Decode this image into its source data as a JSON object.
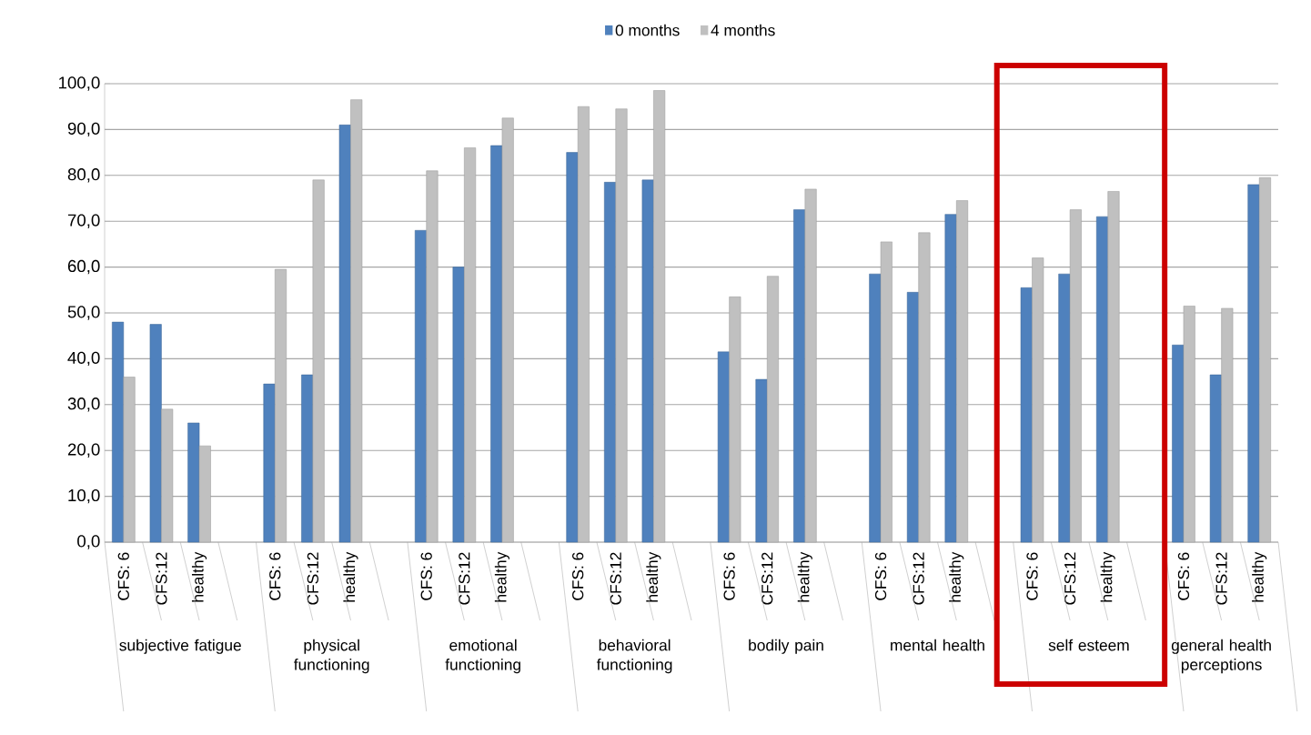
{
  "chart_data": {
    "type": "bar",
    "categories": [
      "CFS: 6",
      "CFS:12",
      "healthy",
      null,
      "CFS: 6",
      "CFS:12",
      "healthy",
      null,
      "CFS: 6",
      "CFS:12",
      "healthy",
      null,
      "CFS: 6",
      "CFS:12",
      "healthy",
      null,
      "CFS: 6",
      "CFS:12",
      "healthy",
      null,
      "CFS: 6",
      "CFS:12",
      "healthy",
      null,
      "CFS: 6",
      "CFS:12",
      "healthy",
      null,
      "CFS: 6",
      "CFS:12",
      "healthy"
    ],
    "series": [
      {
        "name": "0 months",
        "color": "#4f81bd",
        "values": [
          48,
          47.5,
          26,
          null,
          34.5,
          36.5,
          91,
          null,
          68,
          60,
          86.5,
          null,
          85,
          78.5,
          79,
          null,
          41.5,
          35.5,
          72.5,
          null,
          58.5,
          54.5,
          71.5,
          null,
          55.5,
          58.5,
          71,
          null,
          43,
          36.5,
          78
        ]
      },
      {
        "name": "4 months",
        "color": "#c0c0c0",
        "values": [
          36,
          29,
          21,
          null,
          59.5,
          79,
          96.5,
          null,
          81,
          86,
          92.5,
          null,
          95,
          94.5,
          98.5,
          null,
          53.5,
          58,
          77,
          null,
          65.5,
          67.5,
          74.5,
          null,
          62,
          72.5,
          76.5,
          null,
          51.5,
          51,
          79.5
        ]
      }
    ],
    "annotations": [
      "subjective fatigue",
      "physical functioning",
      "emotional functioning",
      "behavioral functioning",
      "bodily pain",
      "mental health",
      "self esteem",
      "general health perceptions"
    ],
    "ylim": [
      0,
      100
    ],
    "yticks": [
      {
        "value": 0,
        "label": "0,0"
      },
      {
        "value": 10,
        "label": "10,0"
      },
      {
        "value": 20,
        "label": "20,0"
      },
      {
        "value": 30,
        "label": "30,0"
      },
      {
        "value": 40,
        "label": "40,0"
      },
      {
        "value": 50,
        "label": "50,0"
      },
      {
        "value": 60,
        "label": "60,0"
      },
      {
        "value": 70,
        "label": "70,0"
      },
      {
        "value": 80,
        "label": "80,0"
      },
      {
        "value": 90,
        "label": "90,0"
      },
      {
        "value": 100,
        "label": "100,0"
      }
    ],
    "grid": "y",
    "legend": "top"
  }
}
